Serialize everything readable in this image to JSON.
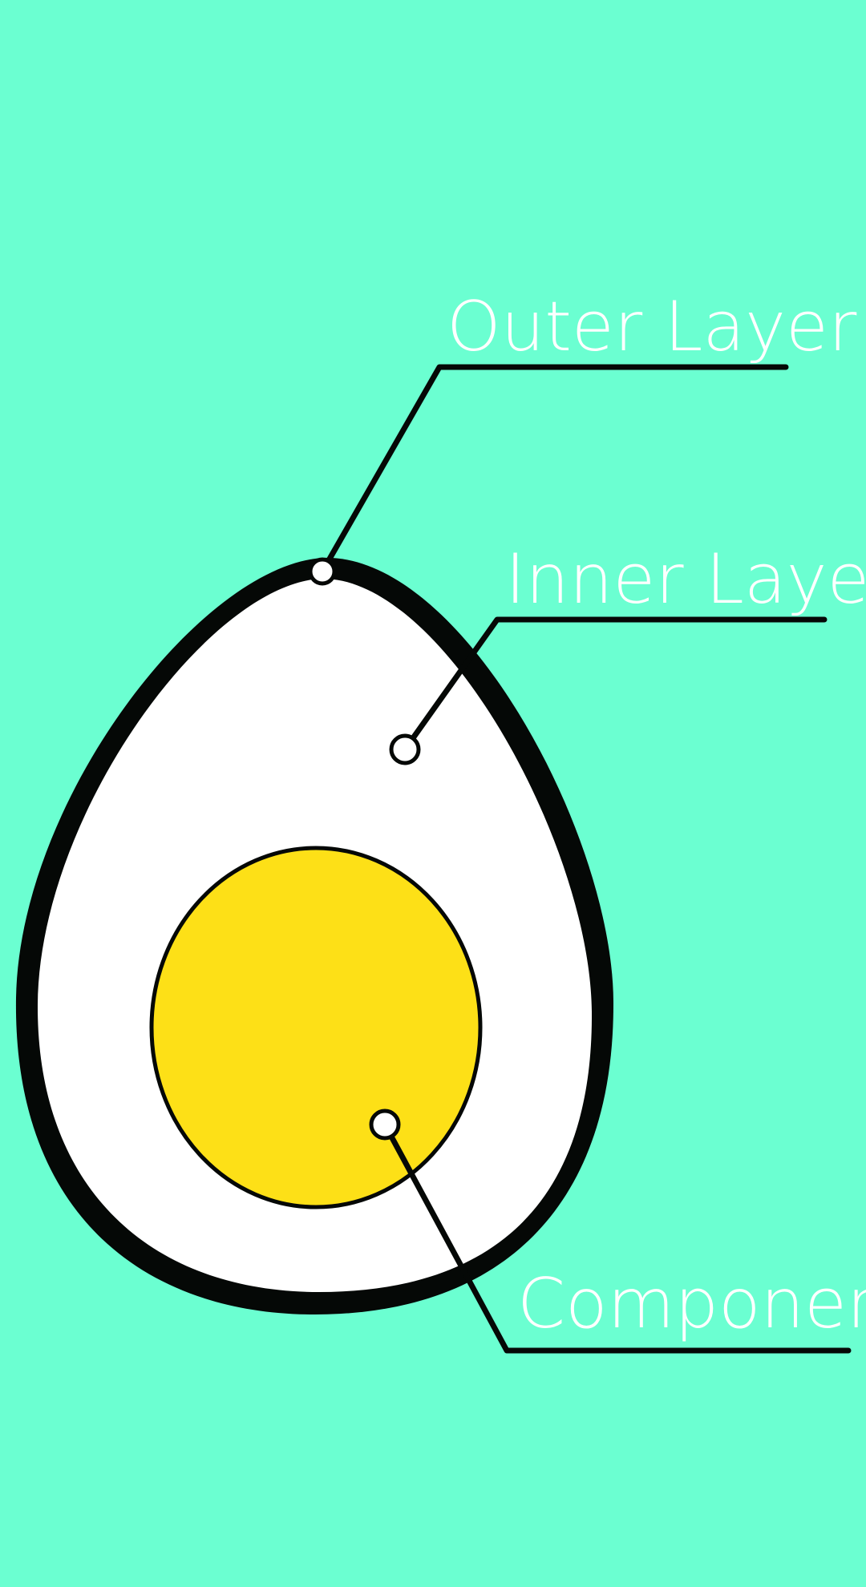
{
  "colors": {
    "background": "#6bffd1",
    "shell": "#050806",
    "egg_white": "#ffffff",
    "yolk": "#fde017",
    "label_text": "#ffffff",
    "leader_line": "#050806"
  },
  "labels": {
    "outer_layer": "Outer Layer",
    "inner_layer": "Inner Layer",
    "component": "Component"
  }
}
